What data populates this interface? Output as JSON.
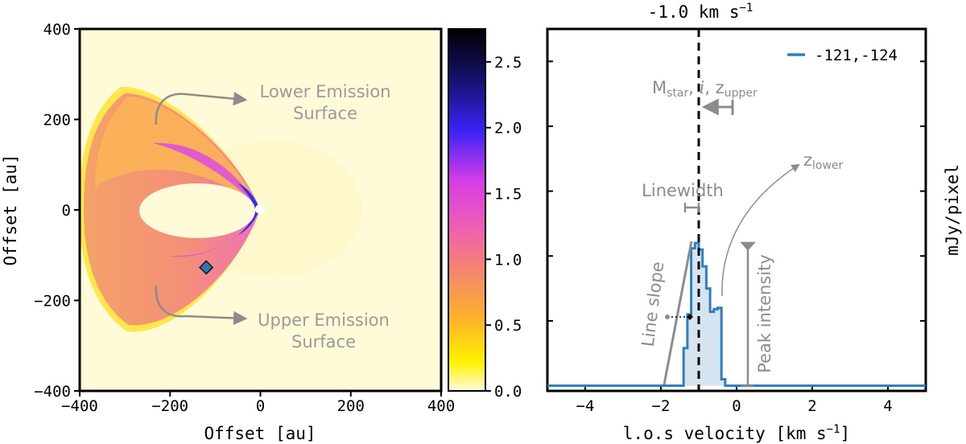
{
  "colors": {
    "map_background": "#fffbd8",
    "band_orange": "#fbb457",
    "band_salmon": "#f49474",
    "band_magenta": "#e15bd3",
    "band_blue": "#3a2bf0",
    "marker": "#2f76b0",
    "profile_line": "#2f7fc0",
    "profile_fill": "#cfdff0",
    "annotation_gray": "#8c8c8c"
  },
  "chart_data": [
    {
      "type": "heatmap",
      "xlabel": "Offset [au]",
      "ylabel": "Offset [au]",
      "xlim": [
        -400,
        400
      ],
      "ylim": [
        -400,
        400
      ],
      "x_ticks": [
        -400,
        -200,
        0,
        200,
        400
      ],
      "y_ticks": [
        400,
        200,
        0,
        -200,
        -400
      ],
      "x_tick_labels": [
        "−400",
        "−200",
        "0",
        "200",
        "400"
      ],
      "y_tick_labels": [
        "400",
        "200",
        "0",
        "−200",
        "−400"
      ],
      "marker": {
        "shape": "diamond",
        "x": -120,
        "y": -127
      },
      "annotations": {
        "lower_line1": "Lower Emission",
        "lower_line2": "Surface",
        "upper_line1": "Upper Emission",
        "upper_line2": "Surface"
      },
      "colorbar": {
        "vmin": 0.0,
        "vmax": 2.75,
        "ticks": [
          0.0,
          0.5,
          1.0,
          1.5,
          2.0,
          2.5
        ],
        "tick_labels": [
          "0.0",
          "0.5",
          "1.0",
          "1.5",
          "2.0",
          "2.5"
        ],
        "unit_label": "mJy/pixel"
      }
    },
    {
      "type": "line",
      "title": "-1.0 km s",
      "title_sup": "−1",
      "xlabel": "l.o.s velocity [km s",
      "xlabel_sup": "−1",
      "xlabel_end": "]",
      "xlim": [
        -5,
        5
      ],
      "ylim": [
        -0.04,
        2.75
      ],
      "x_ticks": [
        -4,
        -2,
        0,
        2,
        4
      ],
      "x_tick_labels": [
        "−4",
        "−2",
        "0",
        "2",
        "4"
      ],
      "dashed_line_x": -1.0,
      "legend": {
        "label": "-121,-124",
        "position": "top-right"
      },
      "series": [
        {
          "name": "-121,-124",
          "x": [
            -5.0,
            -1.5,
            -1.4,
            -1.3,
            -1.2,
            -1.1,
            -1.0,
            -0.9,
            -0.8,
            -0.7,
            -0.6,
            -0.5,
            -0.4,
            -0.3,
            5.0
          ],
          "y": [
            0.0,
            0.0,
            0.29,
            0.55,
            1.06,
            1.1,
            1.05,
            0.92,
            0.75,
            0.57,
            0.59,
            0.6,
            0.05,
            0.0,
            0.0
          ]
        }
      ],
      "annotations": {
        "mstar_label": "M",
        "mstar_sub": "star",
        "mstar_rest": ", ",
        "incl_label": "i",
        "z_label": ", z",
        "z_sub": "upper",
        "zlower_label": "z",
        "zlower_sub": "lower",
        "linewidth_label": "Linewidth",
        "line_slope_label": "Line slope",
        "peak_intensity_label": "Peak intensity"
      }
    }
  ]
}
